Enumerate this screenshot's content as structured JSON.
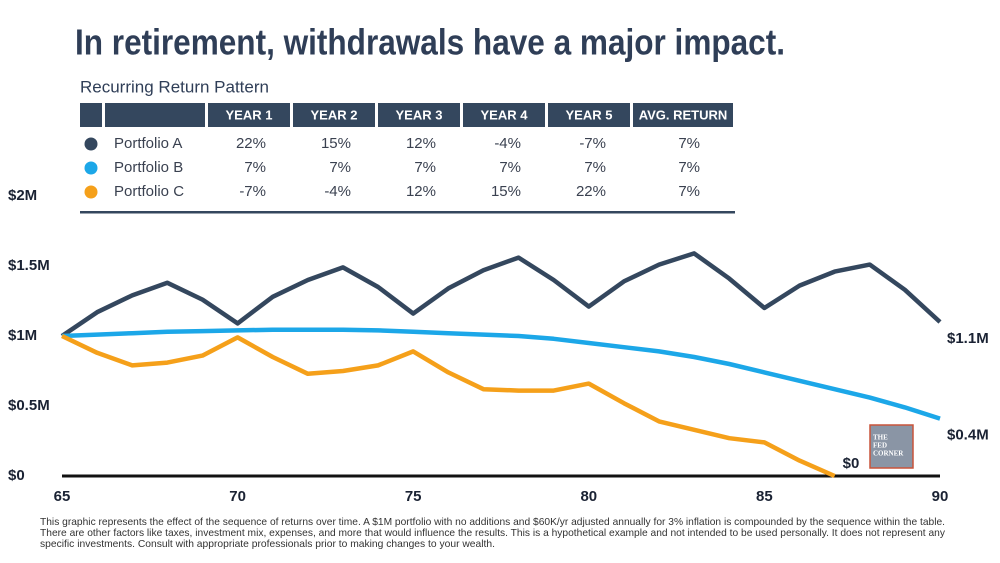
{
  "chart_data": {
    "type": "line",
    "title": "In retirement, withdrawals have a major impact.",
    "x": [
      65,
      66,
      67,
      68,
      69,
      70,
      71,
      72,
      73,
      74,
      75,
      76,
      77,
      78,
      79,
      80,
      81,
      82,
      83,
      84,
      85,
      86,
      87,
      88,
      89,
      90
    ],
    "series": [
      {
        "name": "Portfolio A",
        "color": "#34475e",
        "values": [
          1.0,
          1.17,
          1.29,
          1.38,
          1.26,
          1.09,
          1.28,
          1.4,
          1.49,
          1.35,
          1.16,
          1.34,
          1.47,
          1.56,
          1.4,
          1.21,
          1.39,
          1.51,
          1.59,
          1.41,
          1.2,
          1.36,
          1.46,
          1.51,
          1.33,
          1.1
        ]
      },
      {
        "name": "Portfolio B",
        "color": "#1ca7e8",
        "values": [
          1.0,
          1.01,
          1.02,
          1.03,
          1.035,
          1.04,
          1.045,
          1.045,
          1.045,
          1.04,
          1.03,
          1.02,
          1.01,
          1.0,
          0.98,
          0.95,
          0.92,
          0.89,
          0.85,
          0.8,
          0.74,
          0.68,
          0.62,
          0.56,
          0.49,
          0.41
        ]
      },
      {
        "name": "Portfolio C",
        "color": "#f5a01a",
        "values": [
          1.0,
          0.88,
          0.79,
          0.81,
          0.86,
          0.99,
          0.85,
          0.73,
          0.75,
          0.79,
          0.89,
          0.74,
          0.62,
          0.61,
          0.61,
          0.66,
          0.52,
          0.39,
          0.33,
          0.27,
          0.24,
          0.11,
          0.0,
          null,
          null,
          null
        ]
      }
    ],
    "end_labels": [
      "$1.1M",
      "$0.4M",
      "$0"
    ],
    "xlim": [
      65,
      90
    ],
    "xticks": [
      65,
      70,
      75,
      80,
      85,
      90
    ],
    "ylim": [
      0,
      2
    ],
    "yticks": [
      {
        "value": 0,
        "label": "$0"
      },
      {
        "value": 0.5,
        "label": "$0.5M"
      },
      {
        "value": 1,
        "label": "$1M"
      },
      {
        "value": 1.5,
        "label": "$1.5M"
      },
      {
        "value": 2,
        "label": "$2M"
      }
    ],
    "grid": false
  },
  "table": {
    "title": "Recurring Return Pattern",
    "columns": [
      "YEAR 1",
      "YEAR 2",
      "YEAR 3",
      "YEAR 4",
      "YEAR 5",
      "AVG. RETURN"
    ],
    "rows": [
      [
        "22%",
        "15%",
        "12%",
        "-4%",
        "-7%",
        "7%"
      ],
      [
        "7%",
        "7%",
        "7%",
        "7%",
        "7%",
        "7%"
      ],
      [
        "-7%",
        "-4%",
        "12%",
        "15%",
        "22%",
        "7%"
      ]
    ]
  },
  "logo": [
    "THE",
    "FED",
    "CORNER"
  ],
  "footnote": [
    "This graphic represents the effect of the sequence of returns over time. A $1M portfolio with no additions and $60K/yr adjusted annually for 3% inflation is compounded by the sequence within the table.",
    "There are other factors like taxes, investment mix, expenses, and more that would influence the results. This is a hypothetical example and not intended to be used personally. It does not represent any",
    "specific investments. Consult with appropriate professionals prior to making changes to your wealth."
  ]
}
